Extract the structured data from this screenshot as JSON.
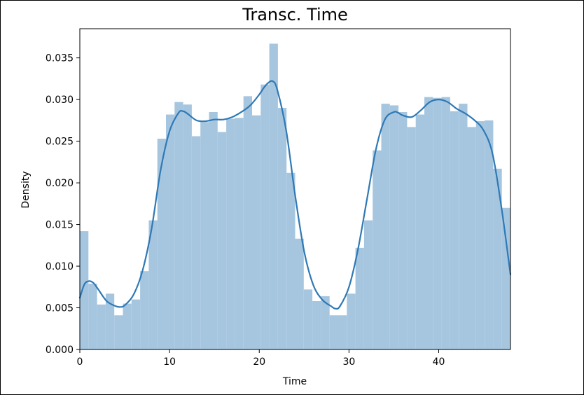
{
  "chart_data": {
    "type": "bar",
    "title": "Transc. Time",
    "xlabel": "Time",
    "ylabel": "Density",
    "xlim": [
      0,
      48
    ],
    "ylim": [
      0,
      0.0385
    ],
    "xticks": [
      0,
      10,
      20,
      30,
      40
    ],
    "yticks": [
      "0.000",
      "0.005",
      "0.010",
      "0.015",
      "0.020",
      "0.025",
      "0.030",
      "0.035"
    ],
    "bin_width": 0.96,
    "bin_start": 0,
    "histogram_values": [
      0.0142,
      0.0079,
      0.0054,
      0.0067,
      0.0041,
      0.0055,
      0.006,
      0.0094,
      0.0155,
      0.0253,
      0.0282,
      0.0297,
      0.0294,
      0.0256,
      0.0273,
      0.0285,
      0.0261,
      0.0277,
      0.0278,
      0.0304,
      0.0281,
      0.0318,
      0.0367,
      0.029,
      0.0212,
      0.0133,
      0.0072,
      0.0058,
      0.0064,
      0.0041,
      0.0041,
      0.0067,
      0.0122,
      0.0155,
      0.0239,
      0.0295,
      0.0293,
      0.0285,
      0.0267,
      0.0282,
      0.0303,
      0.0302,
      0.0303,
      0.0286,
      0.0295,
      0.0267,
      0.0274,
      0.0275,
      0.0217,
      0.017
    ],
    "kde": {
      "x": [
        0,
        0.5,
        1,
        1.5,
        2,
        3,
        4,
        4.5,
        5,
        6,
        7,
        8,
        9,
        10,
        11,
        11.5,
        12,
        13,
        14,
        15,
        16,
        17,
        18,
        19,
        20,
        20.5,
        21,
        21.5,
        22,
        23,
        24,
        25,
        26,
        27,
        28,
        28.5,
        29,
        30,
        31,
        32,
        33,
        34,
        35,
        35.5,
        36,
        37,
        38,
        39,
        40,
        41,
        42,
        43,
        44,
        45,
        46,
        47,
        48
      ],
      "y": [
        0.0062,
        0.0078,
        0.0082,
        0.008,
        0.0073,
        0.0058,
        0.0052,
        0.0051,
        0.0053,
        0.0066,
        0.0095,
        0.0145,
        0.0215,
        0.0262,
        0.0284,
        0.0286,
        0.0283,
        0.0275,
        0.0274,
        0.0276,
        0.0276,
        0.0279,
        0.0285,
        0.0293,
        0.0306,
        0.0314,
        0.032,
        0.0322,
        0.0312,
        0.0263,
        0.0185,
        0.0118,
        0.0078,
        0.006,
        0.0052,
        0.0049,
        0.0052,
        0.0075,
        0.012,
        0.018,
        0.024,
        0.0276,
        0.0285,
        0.0284,
        0.0281,
        0.0279,
        0.0287,
        0.0297,
        0.03,
        0.0297,
        0.0289,
        0.0283,
        0.0275,
        0.0263,
        0.0235,
        0.017,
        0.009
      ]
    },
    "colors": {
      "bar": "#a6c6e0",
      "kde_line": "#2f79b5"
    },
    "grid": false,
    "legend": "none"
  }
}
